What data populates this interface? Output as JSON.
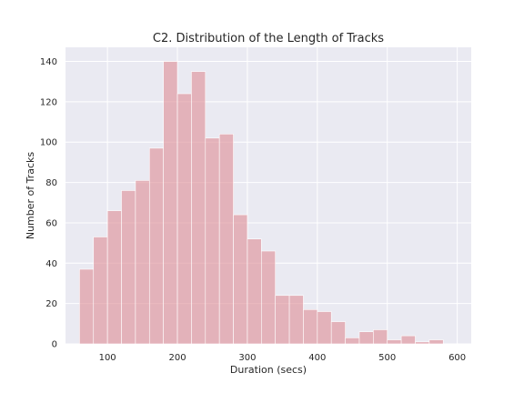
{
  "chart_data": {
    "type": "bar",
    "title": "C2. Distribution of the Length of Tracks",
    "xlabel": "Duration (secs)",
    "ylabel": "Number of Tracks",
    "xlim": [
      40,
      620
    ],
    "ylim": [
      0,
      147
    ],
    "xticks": [
      100,
      200,
      300,
      400,
      500,
      600
    ],
    "yticks": [
      0,
      20,
      40,
      60,
      80,
      100,
      120,
      140
    ],
    "grid": true,
    "bins": [
      {
        "x0": 60,
        "x1": 80,
        "value": 37
      },
      {
        "x0": 80,
        "x1": 100,
        "value": 53
      },
      {
        "x0": 100,
        "x1": 120,
        "value": 66
      },
      {
        "x0": 120,
        "x1": 140,
        "value": 76
      },
      {
        "x0": 140,
        "x1": 160,
        "value": 81
      },
      {
        "x0": 160,
        "x1": 180,
        "value": 97
      },
      {
        "x0": 180,
        "x1": 200,
        "value": 140
      },
      {
        "x0": 200,
        "x1": 220,
        "value": 124
      },
      {
        "x0": 220,
        "x1": 240,
        "value": 135
      },
      {
        "x0": 240,
        "x1": 260,
        "value": 102
      },
      {
        "x0": 260,
        "x1": 280,
        "value": 104
      },
      {
        "x0": 280,
        "x1": 300,
        "value": 64
      },
      {
        "x0": 300,
        "x1": 320,
        "value": 52
      },
      {
        "x0": 320,
        "x1": 340,
        "value": 46
      },
      {
        "x0": 340,
        "x1": 360,
        "value": 24
      },
      {
        "x0": 360,
        "x1": 380,
        "value": 24
      },
      {
        "x0": 380,
        "x1": 400,
        "value": 17
      },
      {
        "x0": 400,
        "x1": 420,
        "value": 16
      },
      {
        "x0": 420,
        "x1": 440,
        "value": 11
      },
      {
        "x0": 440,
        "x1": 460,
        "value": 3
      },
      {
        "x0": 460,
        "x1": 480,
        "value": 6
      },
      {
        "x0": 480,
        "x1": 500,
        "value": 7
      },
      {
        "x0": 500,
        "x1": 520,
        "value": 2
      },
      {
        "x0": 520,
        "x1": 540,
        "value": 4
      },
      {
        "x0": 540,
        "x1": 560,
        "value": 1
      },
      {
        "x0": 560,
        "x1": 580,
        "value": 2
      }
    ],
    "bar_color": "#dd8c94",
    "background_color": "#eaeaf2"
  }
}
